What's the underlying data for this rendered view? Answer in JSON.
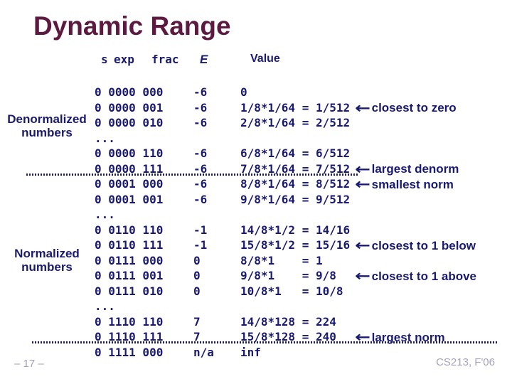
{
  "slide": {
    "title": "Dynamic Range",
    "page_number": "– 17 –",
    "course": "CS213, F'06"
  },
  "colors": {
    "title": "#5c1a41",
    "body_text": "#1a1a70",
    "footer_text": "#a7a1c0",
    "background": "#ffffff"
  },
  "icons": {
    "left_arrow": "←"
  },
  "group_labels": [
    {
      "label": "Denormalized numbers"
    },
    {
      "label": "Normalized numbers"
    }
  ],
  "table": {
    "headers": {
      "s": "s",
      "exp": "exp",
      "frac": "frac",
      "e": "E",
      "value": "Value"
    },
    "rows": [
      {
        "bits": "0 0000 000",
        "e": "-6",
        "value": "0"
      },
      {
        "bits": "0 0000 001",
        "e": "-6",
        "value": "1/8*1/64 = 1/512",
        "note": "closest to zero"
      },
      {
        "bits": "0 0000 010",
        "e": "-6",
        "value": "2/8*1/64 = 2/512"
      },
      {
        "bits": "..."
      },
      {
        "bits": "0 0000 110",
        "e": "-6",
        "value": "6/8*1/64 = 6/512"
      },
      {
        "bits": "0 0000 111",
        "e": "-6",
        "value": "7/8*1/64 = 7/512",
        "note": "largest denorm"
      },
      {
        "bits": "0 0001 000",
        "e": "-6",
        "value": "8/8*1/64 = 8/512",
        "note": "smallest norm"
      },
      {
        "bits": "0 0001 001",
        "e": "-6",
        "value": "9/8*1/64 = 9/512"
      },
      {
        "bits": "..."
      },
      {
        "bits": "0 0110 110",
        "e": "-1",
        "value": "14/8*1/2 = 14/16"
      },
      {
        "bits": "0 0110 111",
        "e": "-1",
        "value": "15/8*1/2 = 15/16",
        "note": "closest to 1 below"
      },
      {
        "bits": "0 0111 000",
        "e": "0",
        "value": "8/8*1    = 1"
      },
      {
        "bits": "0 0111 001",
        "e": "0",
        "value": "9/8*1    = 9/8",
        "note": "closest to 1 above"
      },
      {
        "bits": "0 0111 010",
        "e": "0",
        "value": "10/8*1   = 10/8"
      },
      {
        "bits": "..."
      },
      {
        "bits": "0 1110 110",
        "e": "7",
        "value": "14/8*128 = 224"
      },
      {
        "bits": "0 1110 111",
        "e": "7",
        "value": "15/8*128 = 240",
        "note": "largest norm"
      },
      {
        "bits": "0 1111 000",
        "e": "n/a",
        "value": "inf"
      }
    ]
  }
}
